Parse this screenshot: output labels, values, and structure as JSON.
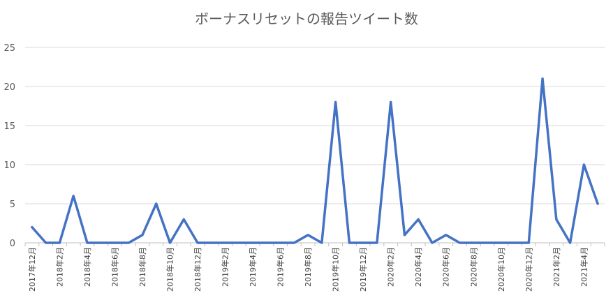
{
  "chart_data": {
    "type": "line",
    "title": "ボーナスリセットの報告ツイート数",
    "xlabel": "",
    "ylabel": "",
    "ylim": [
      0,
      25
    ],
    "yticks": [
      0,
      5,
      10,
      15,
      20,
      25
    ],
    "grid": true,
    "legend": "none",
    "color": "#4472c4",
    "x": [
      "2017年12月",
      "2018年1月",
      "2018年2月",
      "2018年3月",
      "2018年4月",
      "2018年5月",
      "2018年6月",
      "2018年7月",
      "2018年8月",
      "2018年9月",
      "2018年10月",
      "2018年11月",
      "2018年12月",
      "2019年1月",
      "2019年2月",
      "2019年3月",
      "2019年4月",
      "2019年5月",
      "2019年6月",
      "2019年7月",
      "2019年8月",
      "2019年9月",
      "2019年10月",
      "2019年11月",
      "2019年12月",
      "2020年1月",
      "2020年2月",
      "2020年3月",
      "2020年4月",
      "2020年5月",
      "2020年6月",
      "2020年7月",
      "2020年8月",
      "2020年9月",
      "2020年10月",
      "2020年11月",
      "2020年12月",
      "2021年1月",
      "2021年2月",
      "2021年3月",
      "2021年4月",
      "2021年5月"
    ],
    "x_tick_labels": [
      "2017年12月",
      "2018年2月",
      "2018年4月",
      "2018年6月",
      "2018年8月",
      "2018年10月",
      "2018年12月",
      "2019年2月",
      "2019年4月",
      "2019年6月",
      "2019年8月",
      "2019年10月",
      "2019年12月",
      "2020年2月",
      "2020年4月",
      "2020年6月",
      "2020年8月",
      "2020年10月",
      "2020年12月",
      "2021年2月",
      "2021年4月"
    ],
    "series": [
      {
        "values": [
          2,
          0,
          0,
          6,
          0,
          0,
          0,
          0,
          1,
          5,
          0,
          3,
          0,
          0,
          0,
          0,
          0,
          0,
          0,
          0,
          1,
          0,
          18,
          0,
          0,
          0,
          18,
          1,
          3,
          0,
          1,
          0,
          0,
          0,
          0,
          0,
          0,
          21,
          3,
          0,
          10,
          5
        ]
      }
    ]
  }
}
